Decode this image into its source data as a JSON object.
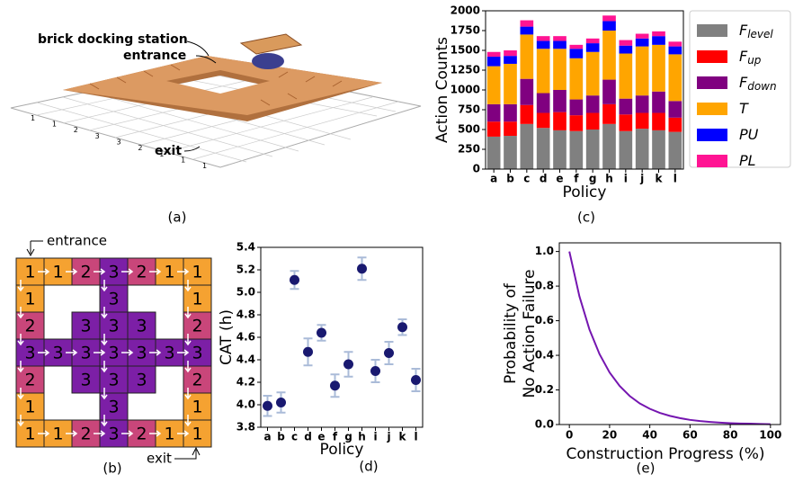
{
  "figure": {
    "a": {
      "label": "(a)",
      "docking": "brick docking station",
      "entrance": "entrance",
      "exit": "exit",
      "floor_numbers": [
        "1",
        "1",
        "2",
        "3",
        "3",
        "2",
        "1",
        "1",
        "1"
      ]
    },
    "b": {
      "label": "(b)",
      "entrance": "entrance",
      "exit": "exit",
      "colors": {
        "1": "#f5a231",
        "2": "#c9467a",
        "3": "#7c1fa6"
      },
      "rows": [
        [
          "1",
          "1",
          "2",
          "3",
          "2",
          "1",
          "1"
        ],
        [
          "1",
          null,
          null,
          "3",
          null,
          null,
          "1"
        ],
        [
          "2",
          null,
          "3",
          "3",
          "3",
          null,
          "2"
        ],
        [
          "3",
          "3",
          "3",
          "3",
          "3",
          "3",
          "3"
        ],
        [
          "2",
          null,
          "3",
          "3",
          "3",
          null,
          "2"
        ],
        [
          "1",
          null,
          null,
          "3",
          null,
          null,
          "1"
        ],
        [
          "1",
          "1",
          "2",
          "3",
          "2",
          "1",
          "1"
        ]
      ]
    }
  },
  "chart_data": [
    {
      "type": "stacked_bar",
      "panel_label": "(c)",
      "x_label": "Policy",
      "y_label": "Action Counts",
      "categories": [
        "a",
        "b",
        "c",
        "d",
        "e",
        "f",
        "g",
        "h",
        "i",
        "j",
        "k",
        "l"
      ],
      "ylim": [
        0,
        2000
      ],
      "yticks": [
        0,
        250,
        500,
        750,
        1000,
        1250,
        1500,
        1750,
        2000
      ],
      "series": [
        {
          "name": "F",
          "subscript": "level",
          "color": "#808080",
          "values": [
            410,
            420,
            570,
            520,
            490,
            480,
            500,
            570,
            480,
            510,
            490,
            470
          ]
        },
        {
          "name": "F",
          "subscript": "up",
          "color": "#ff0000",
          "values": [
            190,
            180,
            240,
            190,
            230,
            200,
            210,
            250,
            210,
            200,
            220,
            180
          ]
        },
        {
          "name": "F",
          "subscript": "down",
          "color": "#800080",
          "values": [
            220,
            220,
            330,
            250,
            280,
            200,
            220,
            310,
            200,
            220,
            270,
            210
          ]
        },
        {
          "name": "T",
          "color": "#ffa500",
          "values": [
            480,
            510,
            560,
            560,
            520,
            520,
            550,
            620,
            570,
            620,
            590,
            590
          ]
        },
        {
          "name": "PU",
          "color": "#0000ff",
          "values": [
            120,
            100,
            100,
            100,
            100,
            120,
            110,
            120,
            100,
            100,
            110,
            100
          ]
        },
        {
          "name": "PL",
          "color": "#ff1493",
          "values": [
            60,
            70,
            80,
            60,
            60,
            50,
            60,
            70,
            70,
            60,
            60,
            60
          ]
        }
      ]
    },
    {
      "type": "errorbar",
      "panel_label": "(d)",
      "x_label": "Policy",
      "y_label": "CAT (h)",
      "categories": [
        "a",
        "b",
        "c",
        "d",
        "e",
        "f",
        "g",
        "h",
        "i",
        "j",
        "k",
        "l"
      ],
      "values": [
        3.99,
        4.02,
        5.11,
        4.47,
        4.64,
        4.17,
        4.36,
        5.21,
        4.3,
        4.46,
        4.69,
        4.22
      ],
      "errors": [
        0.09,
        0.09,
        0.08,
        0.12,
        0.07,
        0.1,
        0.11,
        0.1,
        0.1,
        0.1,
        0.07,
        0.1
      ],
      "color": "#191970",
      "error_color": "#aabbd8",
      "ylim": [
        3.8,
        5.4
      ],
      "yticks": [
        3.8,
        {
          "value": 4,
          "label": "4.0"
        },
        4.2,
        4.4,
        4.6,
        4.8,
        {
          "value": 5,
          "label": "5.0"
        },
        5.2,
        5.4
      ]
    },
    {
      "type": "line",
      "panel_label": "(e)",
      "x_label": "Construction Progress (%)",
      "y_label": [
        "Probability of",
        "No Action Failure"
      ],
      "color": "#7516b0",
      "x": [
        0,
        5,
        10,
        15,
        20,
        25,
        30,
        35,
        40,
        45,
        50,
        55,
        60,
        65,
        70,
        75,
        80,
        85,
        90,
        95,
        100
      ],
      "values": [
        1,
        0.741,
        0.549,
        0.407,
        0.301,
        0.223,
        0.165,
        0.122,
        0.091,
        0.067,
        0.05,
        0.037,
        0.027,
        0.02,
        0.015,
        0.011,
        0.008,
        0.006,
        0.005,
        0.003,
        0.002
      ],
      "xlim": [
        -5,
        105
      ],
      "xticks": [
        0,
        20,
        40,
        60,
        80,
        100
      ],
      "ylim": [
        0,
        1.05
      ],
      "yticks": [
        {
          "value": 0,
          "label": "0.0"
        },
        0.2,
        0.4,
        0.6,
        0.8,
        {
          "value": 1,
          "label": "1.0"
        }
      ]
    }
  ]
}
